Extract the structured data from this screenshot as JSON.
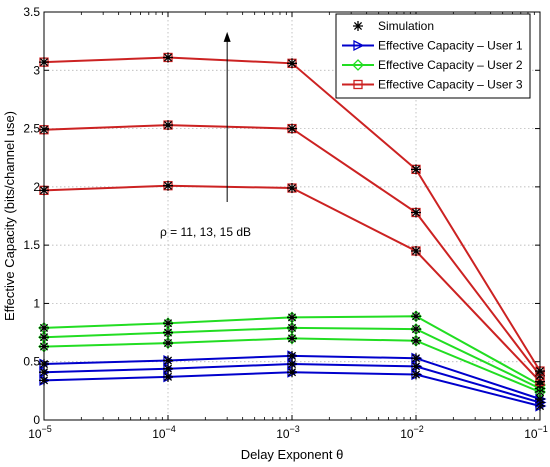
{
  "chart_data": {
    "type": "line",
    "xlabel": "Delay Exponent θ",
    "ylabel": "Effective Capacity (bits/channel use)",
    "x_scale": "log",
    "x": [
      1e-05,
      0.0001,
      0.001,
      0.01,
      0.1
    ],
    "x_tick_bases": [
      "10",
      "10",
      "10",
      "10",
      "10"
    ],
    "x_tick_exponents": [
      "−5",
      "−4",
      "−3",
      "−2",
      "−1"
    ],
    "ylim": [
      0,
      3.5
    ],
    "y_ticks": [
      0,
      0.5,
      1,
      1.5,
      2,
      2.5,
      3,
      3.5
    ],
    "y_tick_labels": [
      "0",
      "0.5",
      "1",
      "1.5",
      "2",
      "2.5",
      "3",
      "3.5"
    ],
    "grid": true,
    "legend_position": "top-right",
    "series": [
      {
        "group": "Effective Capacity – User 1",
        "color": "#0000cc",
        "marker": "triangle-right",
        "values": [
          0.34,
          0.37,
          0.41,
          0.39,
          0.12
        ]
      },
      {
        "group": "Effective Capacity – User 1",
        "color": "#0000cc",
        "marker": "triangle-right",
        "values": [
          0.41,
          0.44,
          0.48,
          0.46,
          0.15
        ]
      },
      {
        "group": "Effective Capacity – User 1",
        "color": "#0000cc",
        "marker": "triangle-right",
        "values": [
          0.48,
          0.51,
          0.55,
          0.53,
          0.18
        ]
      },
      {
        "group": "Effective Capacity – User 2",
        "color": "#22dd22",
        "marker": "diamond",
        "values": [
          0.63,
          0.66,
          0.7,
          0.68,
          0.24
        ]
      },
      {
        "group": "Effective Capacity – User 2",
        "color": "#22dd22",
        "marker": "diamond",
        "values": [
          0.71,
          0.75,
          0.79,
          0.78,
          0.27
        ]
      },
      {
        "group": "Effective Capacity – User 2",
        "color": "#22dd22",
        "marker": "diamond",
        "values": [
          0.79,
          0.83,
          0.88,
          0.89,
          0.3
        ]
      },
      {
        "group": "Effective Capacity – User 3",
        "color": "#cc2222",
        "marker": "square",
        "values": [
          1.97,
          2.01,
          1.99,
          1.45,
          0.33
        ]
      },
      {
        "group": "Effective Capacity – User 3",
        "color": "#cc2222",
        "marker": "square",
        "values": [
          2.49,
          2.53,
          2.5,
          1.78,
          0.38
        ]
      },
      {
        "group": "Effective Capacity – User 3",
        "color": "#cc2222",
        "marker": "square",
        "values": [
          3.07,
          3.11,
          3.06,
          2.15,
          0.42
        ]
      }
    ],
    "legend": [
      {
        "label": "Simulation",
        "color": "#000000",
        "marker": "asterisk",
        "line": false
      },
      {
        "label": "Effective Capacity – User 1",
        "color": "#0000cc",
        "marker": "triangle-right",
        "line": true
      },
      {
        "label": "Effective Capacity – User 2",
        "color": "#22dd22",
        "marker": "diamond",
        "line": true
      },
      {
        "label": "Effective Capacity – User 3",
        "color": "#cc2222",
        "marker": "square",
        "line": true
      }
    ],
    "annotation": {
      "text": "ρ = 11, 13, 15 dB",
      "arrow_x": 0.0003,
      "arrow_from_y": 1.87,
      "arrow_to_y": 3.33
    }
  }
}
